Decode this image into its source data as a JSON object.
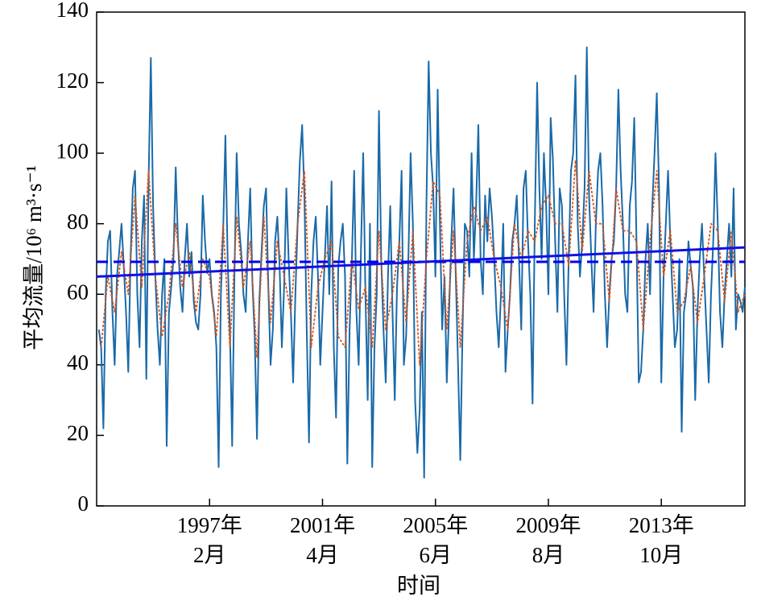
{
  "chart_data": {
    "type": "line",
    "xlabel": "时间",
    "ylabel": "平均流量/10⁶ m³·s⁻¹",
    "x": [
      "1993-01",
      "1993-02",
      "1993-03",
      "1993-04",
      "1993-05",
      "1993-06",
      "1993-07",
      "1993-08",
      "1993-09",
      "1993-10",
      "1993-11",
      "1993-12",
      "1994-01",
      "1994-02",
      "1994-03",
      "1994-04",
      "1994-05",
      "1994-06",
      "1994-07",
      "1994-08",
      "1994-09",
      "1994-10",
      "1994-11",
      "1994-12",
      "1995-01",
      "1995-02",
      "1995-03",
      "1995-04",
      "1995-05",
      "1995-06",
      "1995-07",
      "1995-08",
      "1995-09",
      "1995-10",
      "1995-11",
      "1995-12",
      "1996-01",
      "1996-02",
      "1996-03",
      "1996-04",
      "1996-05",
      "1996-06",
      "1996-07",
      "1996-08",
      "1996-09",
      "1996-10",
      "1996-11",
      "1996-12",
      "1997-01",
      "1997-02",
      "1997-03",
      "1997-04",
      "1997-05",
      "1997-06",
      "1997-07",
      "1997-08",
      "1997-09",
      "1997-10",
      "1997-11",
      "1997-12",
      "1998-01",
      "1998-02",
      "1998-03",
      "1998-04",
      "1998-05",
      "1998-06",
      "1998-07",
      "1998-08",
      "1998-09",
      "1998-10",
      "1998-11",
      "1998-12",
      "1999-01",
      "1999-02",
      "1999-03",
      "1999-04",
      "1999-05",
      "1999-06",
      "1999-07",
      "1999-08",
      "1999-09",
      "1999-10",
      "1999-11",
      "1999-12",
      "2000-01",
      "2000-02",
      "2000-03",
      "2000-04",
      "2000-05",
      "2000-06",
      "2000-07",
      "2000-08",
      "2000-09",
      "2000-10",
      "2000-11",
      "2000-12",
      "2001-01",
      "2001-02",
      "2001-03",
      "2001-04",
      "2001-05",
      "2001-06",
      "2001-07",
      "2001-08",
      "2001-09",
      "2001-10",
      "2001-11",
      "2001-12",
      "2002-01",
      "2002-02",
      "2002-03",
      "2002-04",
      "2002-05",
      "2002-06",
      "2002-07",
      "2002-08",
      "2002-09",
      "2002-10",
      "2002-11",
      "2002-12",
      "2003-01",
      "2003-02",
      "2003-03",
      "2003-04",
      "2003-05",
      "2003-06",
      "2003-07",
      "2003-08",
      "2003-09",
      "2003-10",
      "2003-11",
      "2003-12",
      "2004-01",
      "2004-02",
      "2004-03",
      "2004-04",
      "2004-05",
      "2004-06",
      "2004-07",
      "2004-08",
      "2004-09",
      "2004-10",
      "2004-11",
      "2004-12",
      "2005-01",
      "2005-02",
      "2005-03",
      "2005-04",
      "2005-05",
      "2005-06",
      "2005-07",
      "2005-08",
      "2005-09",
      "2005-10",
      "2005-11",
      "2005-12",
      "2006-01",
      "2006-02",
      "2006-03",
      "2006-04",
      "2006-05",
      "2006-06",
      "2006-07",
      "2006-08",
      "2006-09",
      "2006-10",
      "2006-11",
      "2006-12",
      "2007-01",
      "2007-02",
      "2007-03",
      "2007-04",
      "2007-05",
      "2007-06",
      "2007-07",
      "2007-08",
      "2007-09",
      "2007-10",
      "2007-11",
      "2007-12",
      "2008-01",
      "2008-02",
      "2008-03",
      "2008-04",
      "2008-05",
      "2008-06",
      "2008-07",
      "2008-08",
      "2008-09",
      "2008-10",
      "2008-11",
      "2008-12",
      "2009-01",
      "2009-02",
      "2009-03",
      "2009-04",
      "2009-05",
      "2009-06",
      "2009-07",
      "2009-08",
      "2009-09",
      "2009-10",
      "2009-11",
      "2009-12",
      "2010-01",
      "2010-02",
      "2010-03",
      "2010-04",
      "2010-05",
      "2010-06",
      "2010-07",
      "2010-08",
      "2010-09",
      "2010-10",
      "2010-11",
      "2010-12",
      "2011-01",
      "2011-02",
      "2011-03",
      "2011-04",
      "2011-05",
      "2011-06",
      "2011-07",
      "2011-08",
      "2011-09",
      "2011-10",
      "2011-11",
      "2011-12",
      "2012-01",
      "2012-02",
      "2012-03",
      "2012-04",
      "2012-05",
      "2012-06",
      "2012-07",
      "2012-08",
      "2012-09",
      "2012-10",
      "2012-11",
      "2012-12",
      "2013-01",
      "2013-02",
      "2013-03",
      "2013-04",
      "2013-05",
      "2013-06",
      "2013-07",
      "2013-08",
      "2013-09",
      "2013-10",
      "2013-11",
      "2013-12",
      "2014-01",
      "2014-02",
      "2014-03",
      "2014-04",
      "2014-05",
      "2014-06",
      "2014-07",
      "2014-08",
      "2014-09",
      "2014-10",
      "2014-11",
      "2014-12",
      "2015-01",
      "2015-02",
      "2015-03",
      "2015-04",
      "2015-05",
      "2015-06",
      "2015-07",
      "2015-08",
      "2015-09",
      "2015-10",
      "2015-11",
      "2015-12",
      "2016-01",
      "2016-02",
      "2016-03",
      "2016-04",
      "2016-05",
      "2016-06",
      "2016-07",
      "2016-08",
      "2016-09",
      "2016-10",
      "2016-11"
    ],
    "series": [
      {
        "color": "#1a6aa8",
        "values": [
          50,
          45,
          22,
          60,
          75,
          78,
          55,
          40,
          65,
          72,
          80,
          68,
          55,
          38,
          70,
          90,
          95,
          60,
          45,
          75,
          88,
          36,
          92,
          127,
          85,
          65,
          50,
          40,
          60,
          70,
          17,
          55,
          62,
          70,
          96,
          75,
          62,
          55,
          70,
          80,
          65,
          72,
          58,
          52,
          50,
          60,
          88,
          75,
          66,
          70,
          60,
          55,
          45,
          11,
          60,
          78,
          105,
          70,
          50,
          17,
          65,
          100,
          80,
          72,
          60,
          55,
          75,
          90,
          63,
          48,
          19,
          58,
          72,
          85,
          90,
          62,
          40,
          50,
          75,
          82,
          68,
          45,
          62,
          90,
          70,
          55,
          35,
          60,
          80,
          98,
          108,
          88,
          50,
          18,
          60,
          75,
          82,
          65,
          40,
          55,
          70,
          85,
          60,
          92,
          45,
          25,
          68,
          75,
          80,
          65,
          12,
          50,
          70,
          95,
          55,
          40,
          72,
          100,
          60,
          30,
          80,
          11,
          45,
          60,
          112,
          70,
          50,
          35,
          65,
          85,
          55,
          30,
          62,
          75,
          95,
          40,
          48,
          70,
          100,
          80,
          30,
          15,
          27,
          55,
          8,
          85,
          126,
          100,
          90,
          65,
          118,
          80,
          50,
          65,
          35,
          55,
          75,
          90,
          65,
          40,
          13,
          50,
          80,
          78,
          65,
          100,
          70,
          85,
          108,
          70,
          60,
          88,
          75,
          90,
          82,
          70,
          55,
          45,
          60,
          80,
          38,
          50,
          60,
          75,
          80,
          88,
          70,
          50,
          90,
          95,
          75,
          60,
          29,
          80,
          120,
          90,
          70,
          100,
          85,
          60,
          110,
          98,
          75,
          55,
          90,
          85,
          60,
          40,
          70,
          95,
          100,
          122,
          80,
          65,
          75,
          90,
          130,
          88,
          70,
          55,
          80,
          95,
          100,
          85,
          60,
          45,
          60,
          70,
          75,
          90,
          118,
          95,
          80,
          60,
          55,
          85,
          92,
          110,
          75,
          35,
          38,
          50,
          70,
          80,
          60,
          85,
          100,
          117,
          90,
          35,
          65,
          80,
          95,
          75,
          60,
          45,
          50,
          70,
          21,
          55,
          60,
          75,
          68,
          62,
          30,
          55,
          70,
          80,
          65,
          50,
          35,
          60,
          75,
          100,
          80,
          55,
          45,
          60,
          70,
          80,
          65,
          90,
          50,
          60,
          58,
          55,
          62
        ]
      },
      {
        "color": "#d95319",
        "dash": "3 2",
        "x": [
          "1993-02",
          "1993-05",
          "1993-08",
          "1993-11",
          "1994-02",
          "1994-05",
          "1994-08",
          "1994-11",
          "1995-02",
          "1995-05",
          "1995-08",
          "1995-11",
          "1996-02",
          "1996-05",
          "1996-08",
          "1996-11",
          "1997-02",
          "1997-05",
          "1997-08",
          "1997-11",
          "1998-02",
          "1998-05",
          "1998-08",
          "1998-11",
          "1999-02",
          "1999-05",
          "1999-08",
          "1999-11",
          "2000-02",
          "2000-05",
          "2000-08",
          "2000-11",
          "2001-02",
          "2001-05",
          "2001-08",
          "2001-11",
          "2002-02",
          "2002-05",
          "2002-08",
          "2002-11",
          "2003-02",
          "2003-05",
          "2003-08",
          "2003-11",
          "2004-02",
          "2004-05",
          "2004-08",
          "2004-11",
          "2005-02",
          "2005-05",
          "2005-08",
          "2005-11",
          "2006-02",
          "2006-05",
          "2006-08",
          "2006-11",
          "2007-02",
          "2007-05",
          "2007-08",
          "2007-11",
          "2008-02",
          "2008-05",
          "2008-08",
          "2008-11",
          "2009-02",
          "2009-05",
          "2009-08",
          "2009-11",
          "2010-02",
          "2010-05",
          "2010-08",
          "2010-11",
          "2011-02",
          "2011-05",
          "2011-08",
          "2011-11",
          "2012-02",
          "2012-05",
          "2012-08",
          "2012-11",
          "2013-02",
          "2013-05",
          "2013-08",
          "2013-11",
          "2014-02",
          "2014-05",
          "2014-08",
          "2014-11",
          "2015-02",
          "2015-05",
          "2015-08",
          "2015-11",
          "2016-02",
          "2016-05",
          "2016-08",
          "2016-11"
        ],
        "values": [
          45,
          65,
          55,
          72,
          60,
          88,
          62,
          95,
          65,
          48,
          60,
          80,
          62,
          72,
          55,
          70,
          65,
          48,
          80,
          45,
          82,
          62,
          75,
          42,
          82,
          52,
          75,
          65,
          55,
          80,
          95,
          45,
          62,
          70,
          75,
          48,
          45,
          70,
          56,
          62,
          45,
          78,
          50,
          60,
          75,
          52,
          78,
          40,
          70,
          92,
          88,
          50,
          78,
          45,
          75,
          85,
          78,
          82,
          70,
          62,
          50,
          80,
          70,
          78,
          75,
          85,
          88,
          80,
          80,
          68,
          98,
          72,
          95,
          80,
          80,
          58,
          90,
          78,
          78,
          75,
          50,
          75,
          95,
          65,
          78,
          55,
          58,
          68,
          52,
          65,
          80,
          78,
          58,
          78,
          55,
          60
        ]
      },
      {
        "color": "#0000ee",
        "dash": "14 7",
        "x": [
          "1992-12",
          "2016-11"
        ],
        "values": [
          69.2,
          69.2
        ]
      },
      {
        "color": "#1010e8",
        "x": [
          "1992-12",
          "2016-11"
        ],
        "values": [
          65,
          73.3
        ]
      }
    ],
    "xlim": [
      "1992-12",
      "2016-11"
    ],
    "xticks": [
      {
        "value": "1997-02",
        "label": [
          "1997年",
          "2月"
        ]
      },
      {
        "value": "2001-04",
        "label": [
          "2001年",
          "4月"
        ]
      },
      {
        "value": "2005-06",
        "label": [
          "2005年",
          "6月"
        ]
      },
      {
        "value": "2009-08",
        "label": [
          "2009年",
          "8月"
        ]
      },
      {
        "value": "2013-10",
        "label": [
          "2013年",
          "10月"
        ]
      }
    ],
    "ylim": [
      0,
      140
    ],
    "yticks": [
      0,
      20,
      40,
      60,
      80,
      100,
      120,
      140
    ]
  }
}
